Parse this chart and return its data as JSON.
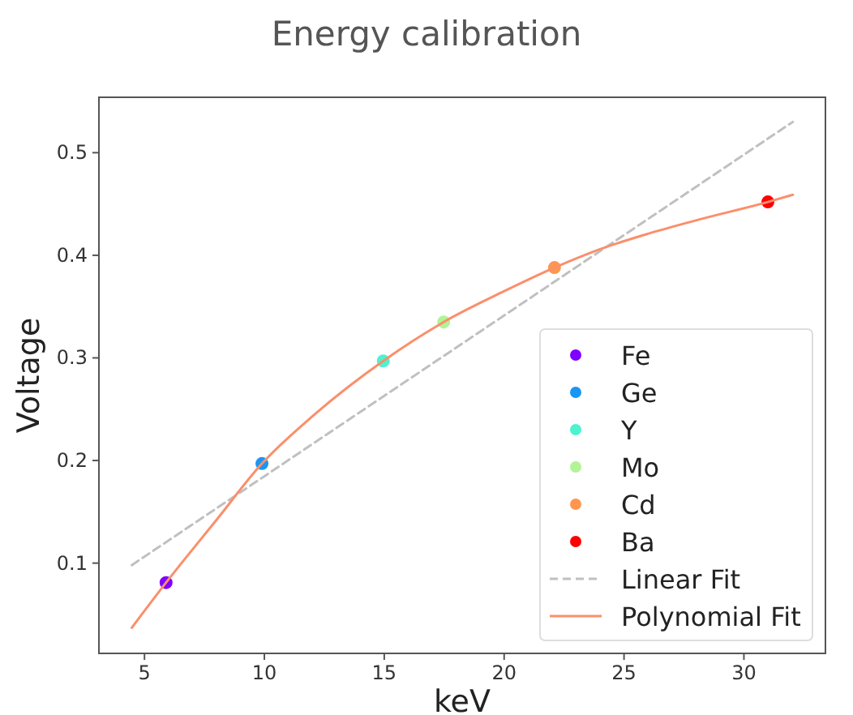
{
  "chart_data": {
    "type": "scatter",
    "title": "Energy calibration",
    "xlabel": "keV",
    "ylabel": "Voltage",
    "xlim": [
      3.1,
      33.4
    ],
    "ylim": [
      0.012,
      0.554
    ],
    "xticks": [
      5,
      10,
      15,
      20,
      25,
      30
    ],
    "yticks": [
      0.1,
      0.2,
      0.3,
      0.4,
      0.5
    ],
    "grid": false,
    "legend": "bottom right",
    "series": [
      {
        "name": "Fe",
        "color": "#8000ff",
        "marker": "circle",
        "x": [
          5.9
        ],
        "values": [
          0.081
        ]
      },
      {
        "name": "Ge",
        "color": "#1996f3",
        "marker": "circle",
        "x": [
          9.9
        ],
        "values": [
          0.197
        ]
      },
      {
        "name": "Y",
        "color": "#4df3ce",
        "marker": "circle",
        "x": [
          14.96
        ],
        "values": [
          0.297
        ]
      },
      {
        "name": "Mo",
        "color": "#b2f396",
        "marker": "circle",
        "x": [
          17.48
        ],
        "values": [
          0.335
        ]
      },
      {
        "name": "Cd",
        "color": "#ff964f",
        "marker": "circle",
        "x": [
          22.1
        ],
        "values": [
          0.388
        ]
      },
      {
        "name": "Ba",
        "color": "#ff0000",
        "marker": "circle",
        "x": [
          31.0
        ],
        "values": [
          0.452
        ]
      },
      {
        "name": "Linear Fit",
        "type": "line",
        "color": "#c0c0c0",
        "line_style": "dashed",
        "x": [
          4.47,
          32.04
        ],
        "values": [
          0.098,
          0.53
        ]
      },
      {
        "name": "Polynomial Fit",
        "type": "line",
        "color": "#fa8f6b",
        "line_style": "solid",
        "x": [
          4.47,
          5.9,
          8,
          9.9,
          12,
          14.96,
          17.48,
          20,
          22.1,
          24,
          26,
          28,
          31,
          32.04
        ],
        "values": [
          0.037,
          0.081,
          0.142,
          0.197,
          0.243,
          0.297,
          0.335,
          0.365,
          0.388,
          0.406,
          0.421,
          0.434,
          0.452,
          0.459
        ]
      }
    ]
  }
}
